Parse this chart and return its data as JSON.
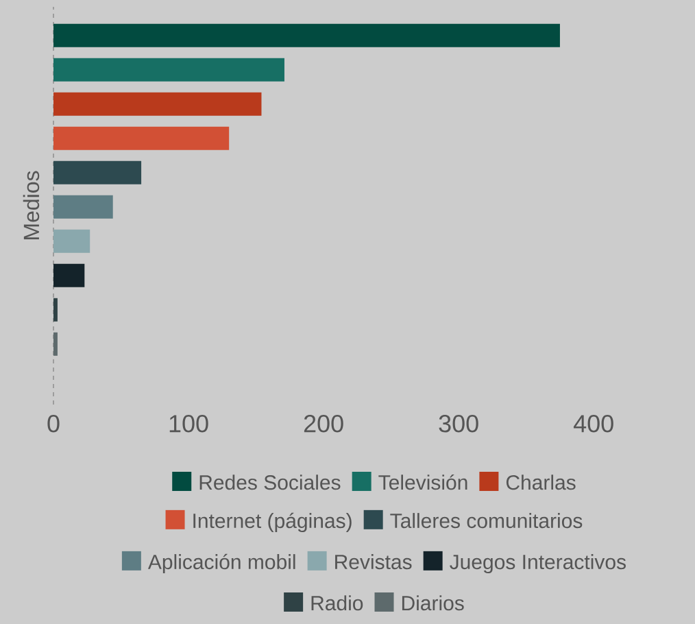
{
  "chart_data": {
    "type": "bar",
    "orientation": "horizontal",
    "ylabel": "Medios",
    "categories": [
      null
    ],
    "series": [
      {
        "name": "Redes Sociales",
        "color": "#024b40",
        "values": [
          375
        ]
      },
      {
        "name": "Televisión",
        "color": "#176f64",
        "values": [
          171
        ]
      },
      {
        "name": "Charlas",
        "color": "#b93a1c",
        "values": [
          154
        ]
      },
      {
        "name": "Internet (páginas)",
        "color": "#d25035",
        "values": [
          130
        ]
      },
      {
        "name": "Talleres comunitarios",
        "color": "#2d4a50",
        "values": [
          65
        ]
      },
      {
        "name": "Aplicación mobil",
        "color": "#5e7d84",
        "values": [
          44
        ]
      },
      {
        "name": "Revistas",
        "color": "#8aa8ad",
        "values": [
          27
        ]
      },
      {
        "name": "Juegos Interactivos",
        "color": "#14232a",
        "values": [
          23
        ]
      },
      {
        "name": "Radio",
        "color": "#2f4245",
        "values": [
          3
        ]
      },
      {
        "name": "Diarios",
        "color": "#5d6a6c",
        "values": [
          3
        ]
      }
    ],
    "xlim": [
      0,
      475
    ],
    "xticks": [
      0,
      100,
      200,
      300,
      400
    ],
    "legend": "bottom"
  }
}
